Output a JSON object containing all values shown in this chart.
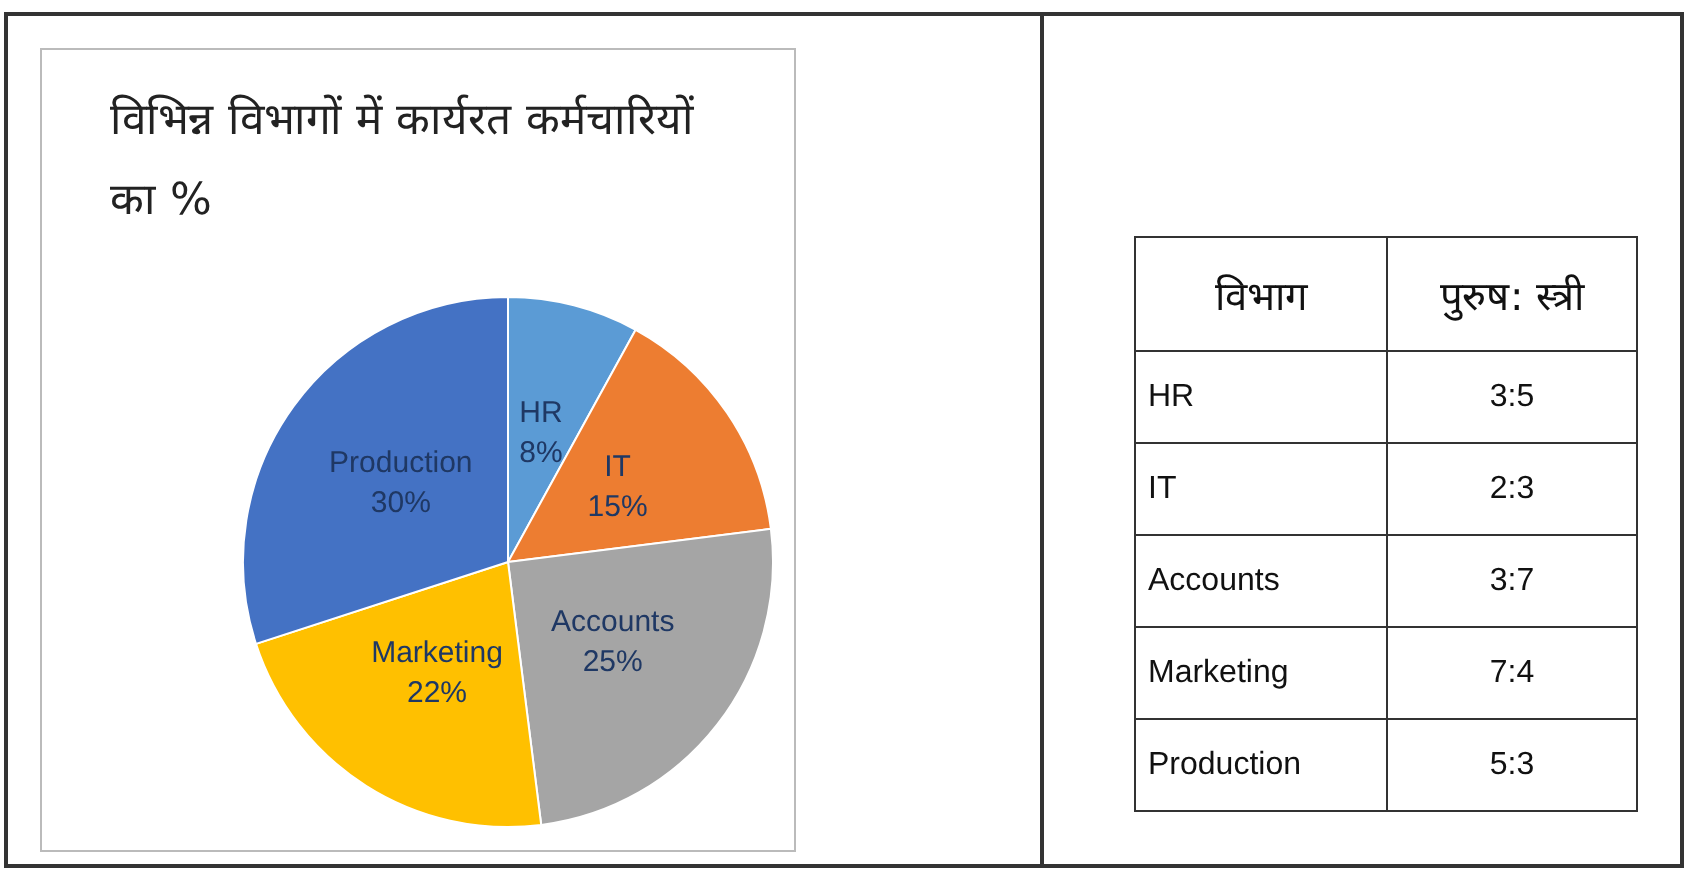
{
  "chart_data": [
    {
      "type": "pie",
      "title": "विभिन्न विभागों में कार्यरत कर्मचारियों का %",
      "categories": [
        "HR",
        "IT",
        "Accounts",
        "Marketing",
        "Production"
      ],
      "values": [
        8,
        15,
        25,
        22,
        30
      ],
      "value_labels": [
        "8%",
        "15%",
        "25%",
        "22%",
        "30%"
      ],
      "colors": [
        "#5b9bd5",
        "#ed7d31",
        "#a5a5a5",
        "#ffc000",
        "#4472c4"
      ],
      "legend": false
    },
    {
      "type": "other",
      "annotations": [
        "विभाग",
        "पुरुष: स्त्री"
      ],
      "categories": [
        "HR",
        "IT",
        "Accounts",
        "Marketing",
        "Production"
      ],
      "value_labels": [
        "3:5",
        "2:3",
        "3:7",
        "7:4",
        "5:3"
      ]
    }
  ]
}
